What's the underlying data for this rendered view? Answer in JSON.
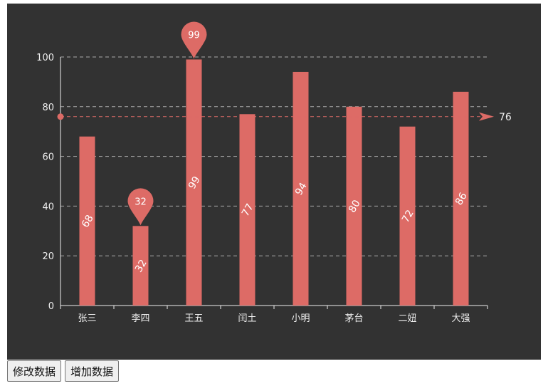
{
  "chart_data": {
    "type": "bar",
    "categories": [
      "张三",
      "李四",
      "王五",
      "闰土",
      "小明",
      "茅台",
      "二妞",
      "大强"
    ],
    "values": [
      68,
      32,
      99,
      77,
      94,
      80,
      72,
      86
    ],
    "ylim": [
      0,
      100
    ],
    "yticks": [
      0,
      20,
      40,
      60,
      80,
      100
    ],
    "grid": true,
    "bar_color": "#dd6b66",
    "background": "#323232",
    "text_color": "#eeeeee",
    "data_labels": "inside, rotated",
    "mark_points": [
      {
        "label": "99",
        "category": "王五",
        "value": 99
      },
      {
        "label": "32",
        "category": "李四",
        "value": 32
      }
    ],
    "mark_line": {
      "label": "76",
      "value": 76
    }
  },
  "buttons": {
    "modify_label": "修改数据",
    "add_label": "增加数据"
  }
}
